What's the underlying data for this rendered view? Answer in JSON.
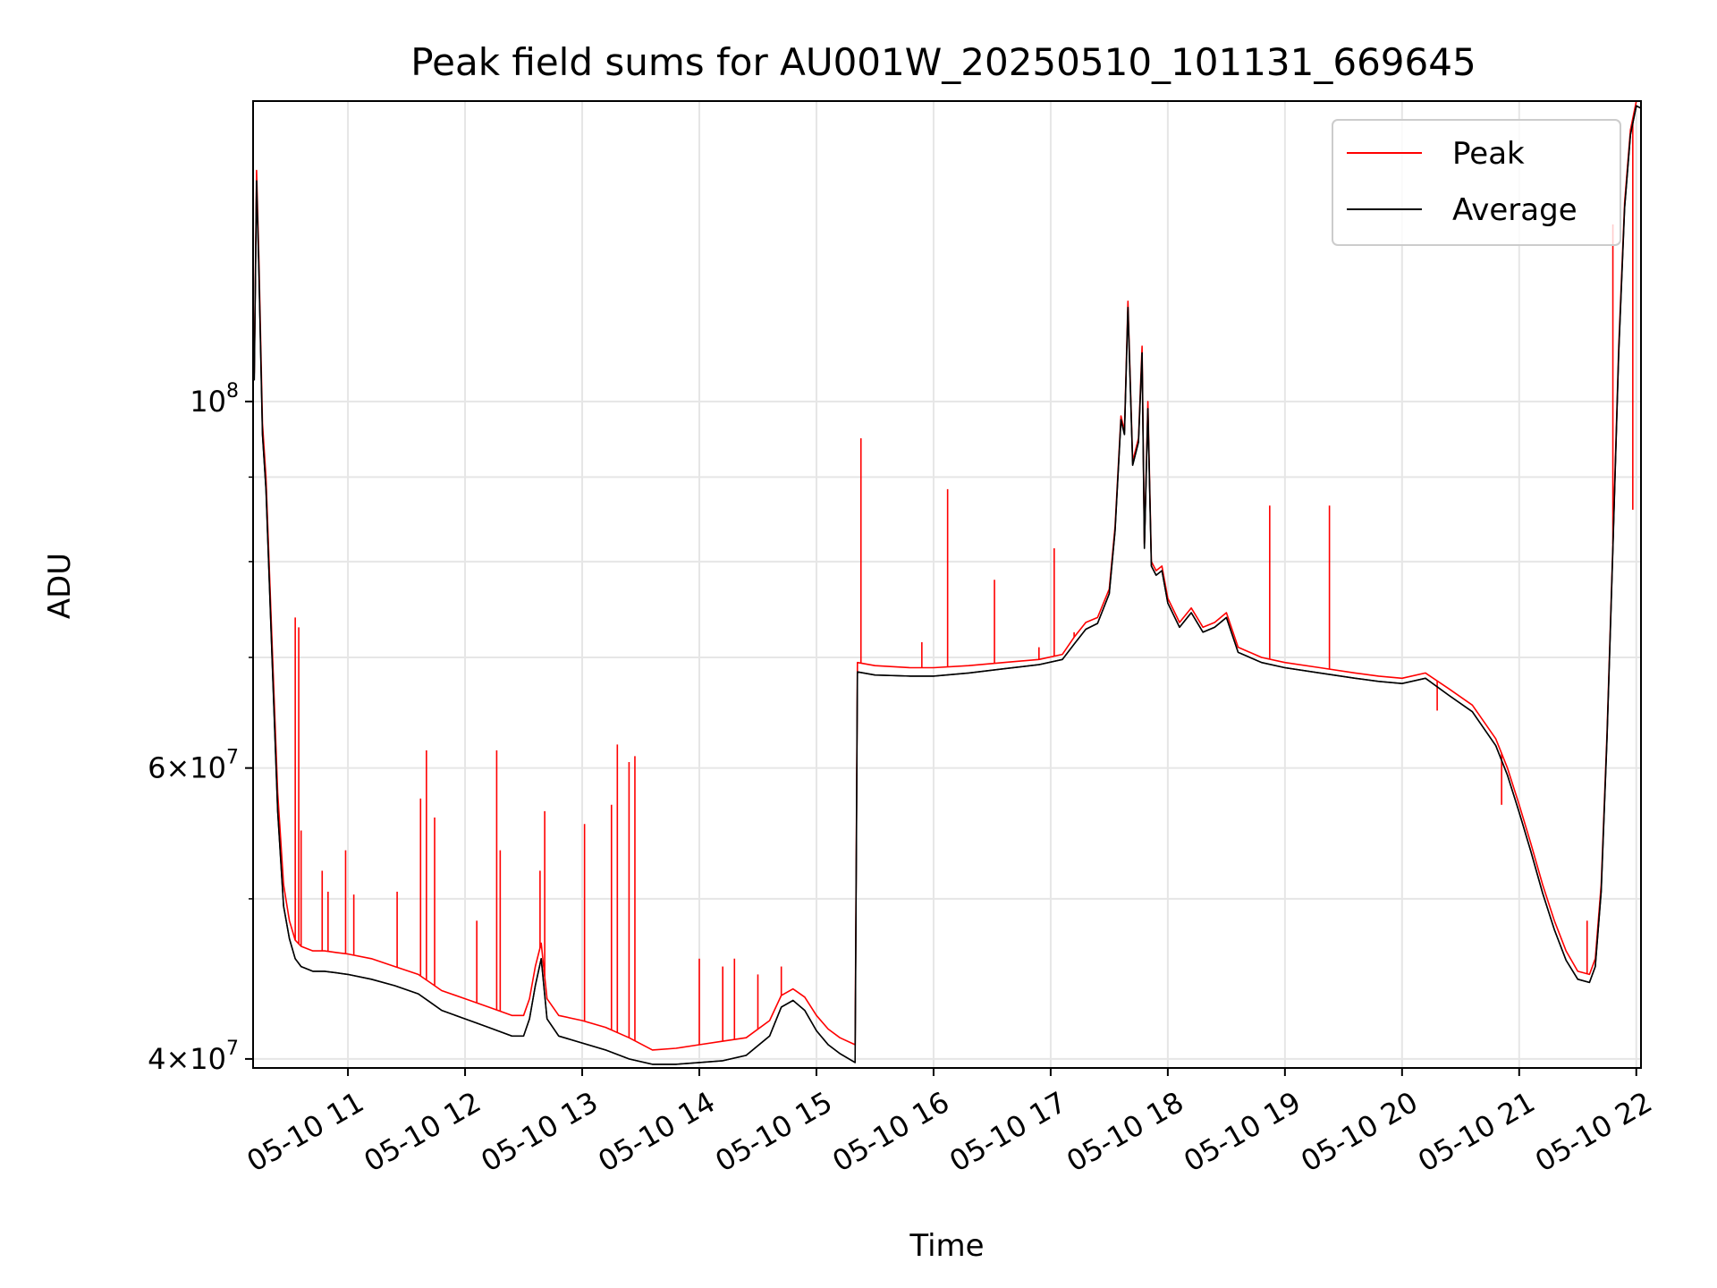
{
  "chart_data": {
    "type": "line",
    "title": "Peak field sums for AU001W_20250510_101131_669645",
    "xlabel": "Time",
    "ylabel": "ADU",
    "x_axis": {
      "unit": "hours on 2025-05-10",
      "range": [
        10.19,
        22.04
      ],
      "ticks": [
        {
          "value": 11,
          "label": "05-10 11"
        },
        {
          "value": 12,
          "label": "05-10 12"
        },
        {
          "value": 13,
          "label": "05-10 13"
        },
        {
          "value": 14,
          "label": "05-10 14"
        },
        {
          "value": 15,
          "label": "05-10 15"
        },
        {
          "value": 16,
          "label": "05-10 16"
        },
        {
          "value": 17,
          "label": "05-10 17"
        },
        {
          "value": 18,
          "label": "05-10 18"
        },
        {
          "value": 19,
          "label": "05-10 19"
        },
        {
          "value": 20,
          "label": "05-10 20"
        },
        {
          "value": 21,
          "label": "05-10 21"
        },
        {
          "value": 22,
          "label": "05-10 22"
        }
      ]
    },
    "y_axis": {
      "scale": "log",
      "range": [
        39500000,
        152000000
      ],
      "major_ticks": [
        {
          "value": 40000000,
          "base": "4",
          "exp": "7",
          "prefix": "4×10"
        },
        {
          "value": 60000000,
          "base": "6",
          "exp": "7",
          "prefix": "6×10"
        },
        {
          "value": 100000000,
          "base": "",
          "exp": "8",
          "prefix": "10"
        }
      ],
      "minor_ticks": [
        50000000,
        70000000,
        80000000,
        90000000
      ]
    },
    "grid": true,
    "legend": {
      "position": "top-right"
    },
    "series": [
      {
        "name": "Peak",
        "color": "#ff0000",
        "x": [
          10.2,
          10.22,
          10.24,
          10.27,
          10.3,
          10.35,
          10.4,
          10.45,
          10.5,
          10.55,
          10.6,
          10.7,
          10.8,
          10.9,
          11.0,
          11.2,
          11.4,
          11.6,
          11.7,
          11.8,
          12.0,
          12.2,
          12.4,
          12.5,
          12.55,
          12.6,
          12.65,
          12.7,
          12.8,
          13.0,
          13.2,
          13.4,
          13.6,
          13.8,
          14.0,
          14.2,
          14.4,
          14.6,
          14.7,
          14.8,
          14.9,
          15.0,
          15.1,
          15.2,
          15.33,
          15.35,
          15.5,
          15.8,
          16.0,
          16.3,
          16.6,
          16.9,
          17.1,
          17.2,
          17.3,
          17.4,
          17.5,
          17.55,
          17.6,
          17.63,
          17.66,
          17.7,
          17.75,
          17.78,
          17.8,
          17.83,
          17.86,
          17.9,
          17.95,
          18.0,
          18.1,
          18.2,
          18.3,
          18.4,
          18.5,
          18.6,
          18.8,
          19.0,
          19.3,
          19.6,
          19.8,
          20.0,
          20.2,
          20.4,
          20.6,
          20.8,
          20.9,
          21.0,
          21.1,
          21.2,
          21.3,
          21.4,
          21.5,
          21.6,
          21.65,
          21.7,
          21.75,
          21.8,
          21.85,
          21.9,
          21.95,
          22.0,
          22.04
        ],
        "y": [
          104000000,
          138000000,
          122000000,
          97000000,
          90000000,
          72000000,
          58000000,
          51000000,
          48500000,
          47200000,
          46800000,
          46500000,
          46500000,
          46400000,
          46300000,
          46000000,
          45500000,
          45000000,
          44500000,
          44000000,
          43500000,
          43000000,
          42500000,
          42500000,
          43500000,
          45500000,
          47000000,
          43500000,
          42500000,
          42200000,
          41800000,
          41200000,
          40500000,
          40600000,
          40800000,
          41000000,
          41200000,
          42200000,
          43700000,
          44100000,
          43600000,
          42500000,
          41700000,
          41200000,
          40800000,
          69500000,
          69200000,
          69000000,
          69000000,
          69200000,
          69500000,
          69800000,
          70300000,
          72000000,
          73500000,
          74000000,
          77000000,
          84000000,
          98000000,
          96000000,
          115000000,
          92000000,
          95000000,
          108000000,
          82000000,
          100000000,
          80000000,
          79000000,
          79500000,
          76000000,
          73500000,
          75000000,
          73000000,
          73500000,
          74500000,
          71000000,
          70000000,
          69500000,
          69000000,
          68500000,
          68200000,
          68000000,
          68500000,
          67000000,
          65500000,
          62500000,
          60000000,
          57000000,
          54000000,
          51000000,
          48500000,
          46500000,
          45200000,
          45000000,
          46000000,
          51000000,
          63000000,
          82000000,
          108000000,
          132000000,
          146000000,
          152000000,
          152000000
        ],
        "spikes": [
          {
            "x": 10.55,
            "y": 74000000
          },
          {
            "x": 10.58,
            "y": 73000000
          },
          {
            "x": 10.6,
            "y": 55000000
          },
          {
            "x": 10.78,
            "y": 52000000
          },
          {
            "x": 10.83,
            "y": 50500000
          },
          {
            "x": 10.98,
            "y": 53500000
          },
          {
            "x": 11.05,
            "y": 50300000
          },
          {
            "x": 11.42,
            "y": 50500000
          },
          {
            "x": 11.62,
            "y": 57500000
          },
          {
            "x": 11.67,
            "y": 61500000
          },
          {
            "x": 11.74,
            "y": 56000000
          },
          {
            "x": 12.1,
            "y": 48500000
          },
          {
            "x": 12.27,
            "y": 61500000
          },
          {
            "x": 12.3,
            "y": 53500000
          },
          {
            "x": 12.64,
            "y": 52000000
          },
          {
            "x": 12.68,
            "y": 56500000
          },
          {
            "x": 13.02,
            "y": 55500000
          },
          {
            "x": 13.25,
            "y": 57000000
          },
          {
            "x": 13.3,
            "y": 62000000
          },
          {
            "x": 13.4,
            "y": 60500000
          },
          {
            "x": 13.45,
            "y": 61000000
          },
          {
            "x": 14.0,
            "y": 46000000
          },
          {
            "x": 14.2,
            "y": 45500000
          },
          {
            "x": 14.3,
            "y": 46000000
          },
          {
            "x": 14.5,
            "y": 45000000
          },
          {
            "x": 14.7,
            "y": 45500000
          },
          {
            "x": 15.38,
            "y": 95000000
          },
          {
            "x": 15.9,
            "y": 71500000
          },
          {
            "x": 16.12,
            "y": 88500000
          },
          {
            "x": 16.52,
            "y": 78000000
          },
          {
            "x": 16.9,
            "y": 71000000
          },
          {
            "x": 17.03,
            "y": 81500000
          },
          {
            "x": 17.2,
            "y": 72500000
          },
          {
            "x": 18.87,
            "y": 86500000
          },
          {
            "x": 19.38,
            "y": 86500000
          },
          {
            "x": 20.3,
            "y": 65000000
          },
          {
            "x": 20.85,
            "y": 57000000
          },
          {
            "x": 21.58,
            "y": 48500000
          },
          {
            "x": 21.8,
            "y": 128000000
          },
          {
            "x": 21.97,
            "y": 86000000
          }
        ]
      },
      {
        "name": "Average",
        "color": "#000000",
        "x": [
          10.2,
          10.22,
          10.24,
          10.27,
          10.3,
          10.35,
          10.4,
          10.45,
          10.5,
          10.55,
          10.6,
          10.7,
          10.8,
          10.9,
          11.0,
          11.2,
          11.4,
          11.6,
          11.7,
          11.8,
          12.0,
          12.2,
          12.4,
          12.5,
          12.55,
          12.6,
          12.65,
          12.7,
          12.8,
          13.0,
          13.2,
          13.4,
          13.6,
          13.8,
          14.0,
          14.2,
          14.4,
          14.6,
          14.7,
          14.8,
          14.9,
          15.0,
          15.1,
          15.2,
          15.33,
          15.35,
          15.5,
          15.8,
          16.0,
          16.3,
          16.6,
          16.9,
          17.1,
          17.2,
          17.3,
          17.4,
          17.5,
          17.55,
          17.6,
          17.63,
          17.66,
          17.7,
          17.75,
          17.78,
          17.8,
          17.83,
          17.86,
          17.9,
          17.95,
          18.0,
          18.1,
          18.2,
          18.3,
          18.4,
          18.5,
          18.6,
          18.8,
          19.0,
          19.3,
          19.6,
          19.8,
          20.0,
          20.2,
          20.4,
          20.6,
          20.8,
          20.9,
          21.0,
          21.1,
          21.2,
          21.3,
          21.4,
          21.5,
          21.6,
          21.65,
          21.7,
          21.75,
          21.8,
          21.85,
          21.9,
          21.95,
          22.0,
          22.04
        ],
        "y": [
          103000000,
          136000000,
          120000000,
          95500000,
          88500000,
          70500000,
          56500000,
          49500000,
          47300000,
          46000000,
          45500000,
          45200000,
          45200000,
          45100000,
          45000000,
          44700000,
          44300000,
          43800000,
          43300000,
          42800000,
          42300000,
          41800000,
          41300000,
          41300000,
          42300000,
          44300000,
          46000000,
          42300000,
          41300000,
          40900000,
          40500000,
          40000000,
          39700000,
          39700000,
          39800000,
          39900000,
          40200000,
          41300000,
          43000000,
          43400000,
          42800000,
          41600000,
          40800000,
          40300000,
          39800000,
          68600000,
          68300000,
          68200000,
          68200000,
          68500000,
          68900000,
          69300000,
          69800000,
          71300000,
          72800000,
          73400000,
          76500000,
          83500000,
          97500000,
          95500000,
          114000000,
          91500000,
          94500000,
          107000000,
          81500000,
          99000000,
          79500000,
          78500000,
          79000000,
          75500000,
          73000000,
          74500000,
          72500000,
          73000000,
          74000000,
          70500000,
          69500000,
          69000000,
          68500000,
          68000000,
          67700000,
          67500000,
          68000000,
          66400000,
          64900000,
          61900000,
          59400000,
          56400000,
          53400000,
          50400000,
          47900000,
          45900000,
          44700000,
          44500000,
          45500000,
          50500000,
          62500000,
          81500000,
          107000000,
          131000000,
          145000000,
          151000000,
          150500000
        ]
      }
    ]
  }
}
